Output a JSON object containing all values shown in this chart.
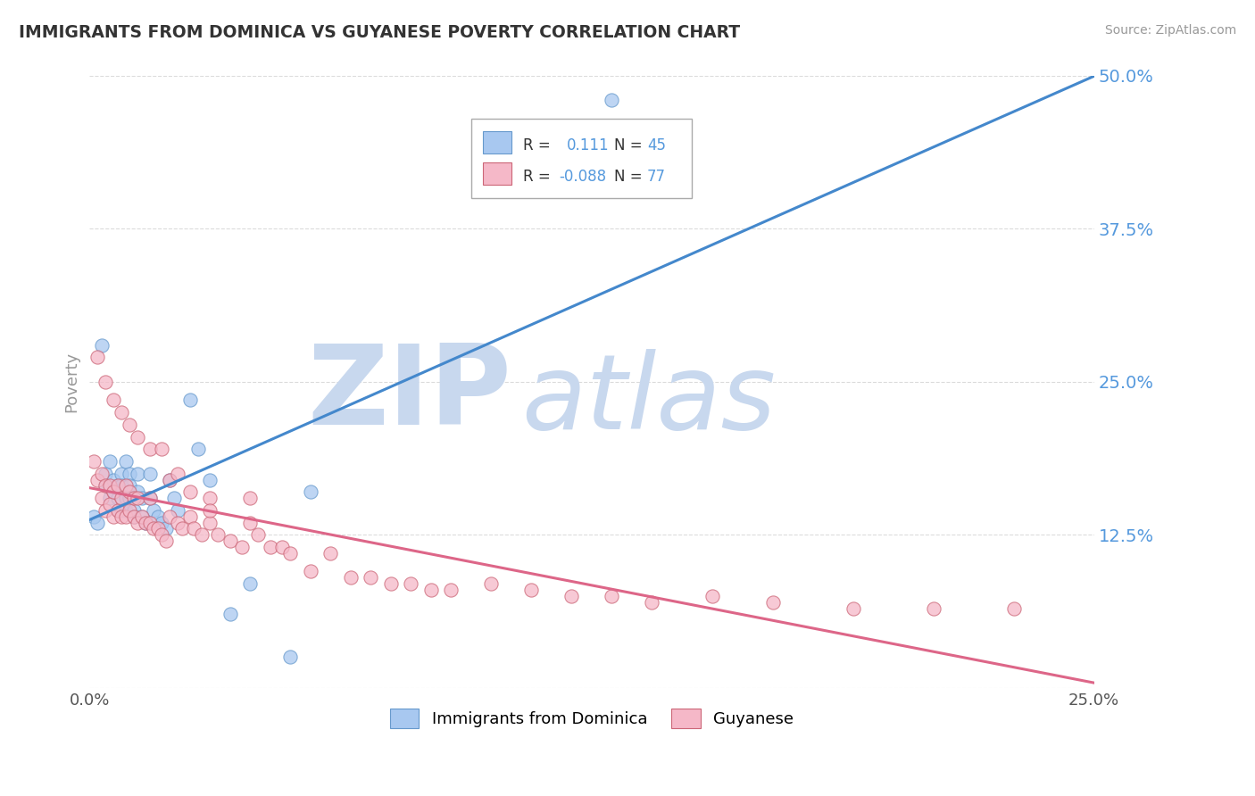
{
  "title": "IMMIGRANTS FROM DOMINICA VS GUYANESE POVERTY CORRELATION CHART",
  "source": "Source: ZipAtlas.com",
  "ylabel": "Poverty",
  "y_ticks": [
    0.0,
    0.125,
    0.25,
    0.375,
    0.5
  ],
  "y_tick_labels": [
    "",
    "12.5%",
    "25.0%",
    "37.5%",
    "50.0%"
  ],
  "x_lim": [
    0,
    0.25
  ],
  "y_lim": [
    0,
    0.5
  ],
  "series1_label": "Immigrants from Dominica",
  "series1_color": "#a8c8f0",
  "series1_edge": "#6699cc",
  "series1_R": 0.111,
  "series1_N": 45,
  "series2_label": "Guyanese",
  "series2_color": "#f5b8c8",
  "series2_edge": "#cc6677",
  "series2_R": -0.088,
  "series2_N": 77,
  "trend1_color": "#4488cc",
  "trend2_color": "#dd6688",
  "watermark_zip": "ZIP",
  "watermark_atlas": "atlas",
  "watermark_color_zip": "#c8d8ee",
  "watermark_color_atlas": "#c8d8ee",
  "grid_color": "#cccccc",
  "title_color": "#333333",
  "label_color": "#5599dd",
  "series1_x": [
    0.001,
    0.002,
    0.003,
    0.004,
    0.004,
    0.005,
    0.005,
    0.006,
    0.006,
    0.007,
    0.007,
    0.007,
    0.008,
    0.008,
    0.008,
    0.009,
    0.009,
    0.009,
    0.01,
    0.01,
    0.01,
    0.011,
    0.011,
    0.012,
    0.012,
    0.013,
    0.013,
    0.014,
    0.015,
    0.015,
    0.016,
    0.017,
    0.018,
    0.019,
    0.02,
    0.021,
    0.022,
    0.025,
    0.027,
    0.03,
    0.035,
    0.04,
    0.05,
    0.055,
    0.13
  ],
  "series1_y": [
    0.14,
    0.135,
    0.28,
    0.175,
    0.165,
    0.155,
    0.185,
    0.17,
    0.16,
    0.165,
    0.155,
    0.145,
    0.175,
    0.165,
    0.145,
    0.185,
    0.155,
    0.145,
    0.175,
    0.165,
    0.155,
    0.145,
    0.14,
    0.175,
    0.16,
    0.155,
    0.14,
    0.135,
    0.175,
    0.155,
    0.145,
    0.14,
    0.135,
    0.13,
    0.17,
    0.155,
    0.145,
    0.235,
    0.195,
    0.17,
    0.06,
    0.085,
    0.025,
    0.16,
    0.48
  ],
  "series2_x": [
    0.001,
    0.002,
    0.003,
    0.003,
    0.004,
    0.004,
    0.005,
    0.005,
    0.006,
    0.006,
    0.007,
    0.007,
    0.008,
    0.008,
    0.009,
    0.009,
    0.01,
    0.01,
    0.011,
    0.011,
    0.012,
    0.012,
    0.013,
    0.014,
    0.015,
    0.015,
    0.016,
    0.017,
    0.018,
    0.019,
    0.02,
    0.02,
    0.022,
    0.023,
    0.025,
    0.026,
    0.028,
    0.03,
    0.03,
    0.032,
    0.035,
    0.038,
    0.04,
    0.042,
    0.045,
    0.048,
    0.05,
    0.055,
    0.06,
    0.065,
    0.07,
    0.075,
    0.08,
    0.085,
    0.09,
    0.1,
    0.11,
    0.12,
    0.13,
    0.14,
    0.155,
    0.17,
    0.19,
    0.21,
    0.23,
    0.002,
    0.004,
    0.006,
    0.008,
    0.01,
    0.012,
    0.015,
    0.018,
    0.022,
    0.025,
    0.03,
    0.04
  ],
  "series2_y": [
    0.185,
    0.17,
    0.175,
    0.155,
    0.165,
    0.145,
    0.165,
    0.15,
    0.16,
    0.14,
    0.165,
    0.145,
    0.155,
    0.14,
    0.165,
    0.14,
    0.16,
    0.145,
    0.155,
    0.14,
    0.155,
    0.135,
    0.14,
    0.135,
    0.155,
    0.135,
    0.13,
    0.13,
    0.125,
    0.12,
    0.17,
    0.14,
    0.135,
    0.13,
    0.14,
    0.13,
    0.125,
    0.155,
    0.135,
    0.125,
    0.12,
    0.115,
    0.155,
    0.125,
    0.115,
    0.115,
    0.11,
    0.095,
    0.11,
    0.09,
    0.09,
    0.085,
    0.085,
    0.08,
    0.08,
    0.085,
    0.08,
    0.075,
    0.075,
    0.07,
    0.075,
    0.07,
    0.065,
    0.065,
    0.065,
    0.27,
    0.25,
    0.235,
    0.225,
    0.215,
    0.205,
    0.195,
    0.195,
    0.175,
    0.16,
    0.145,
    0.135
  ]
}
